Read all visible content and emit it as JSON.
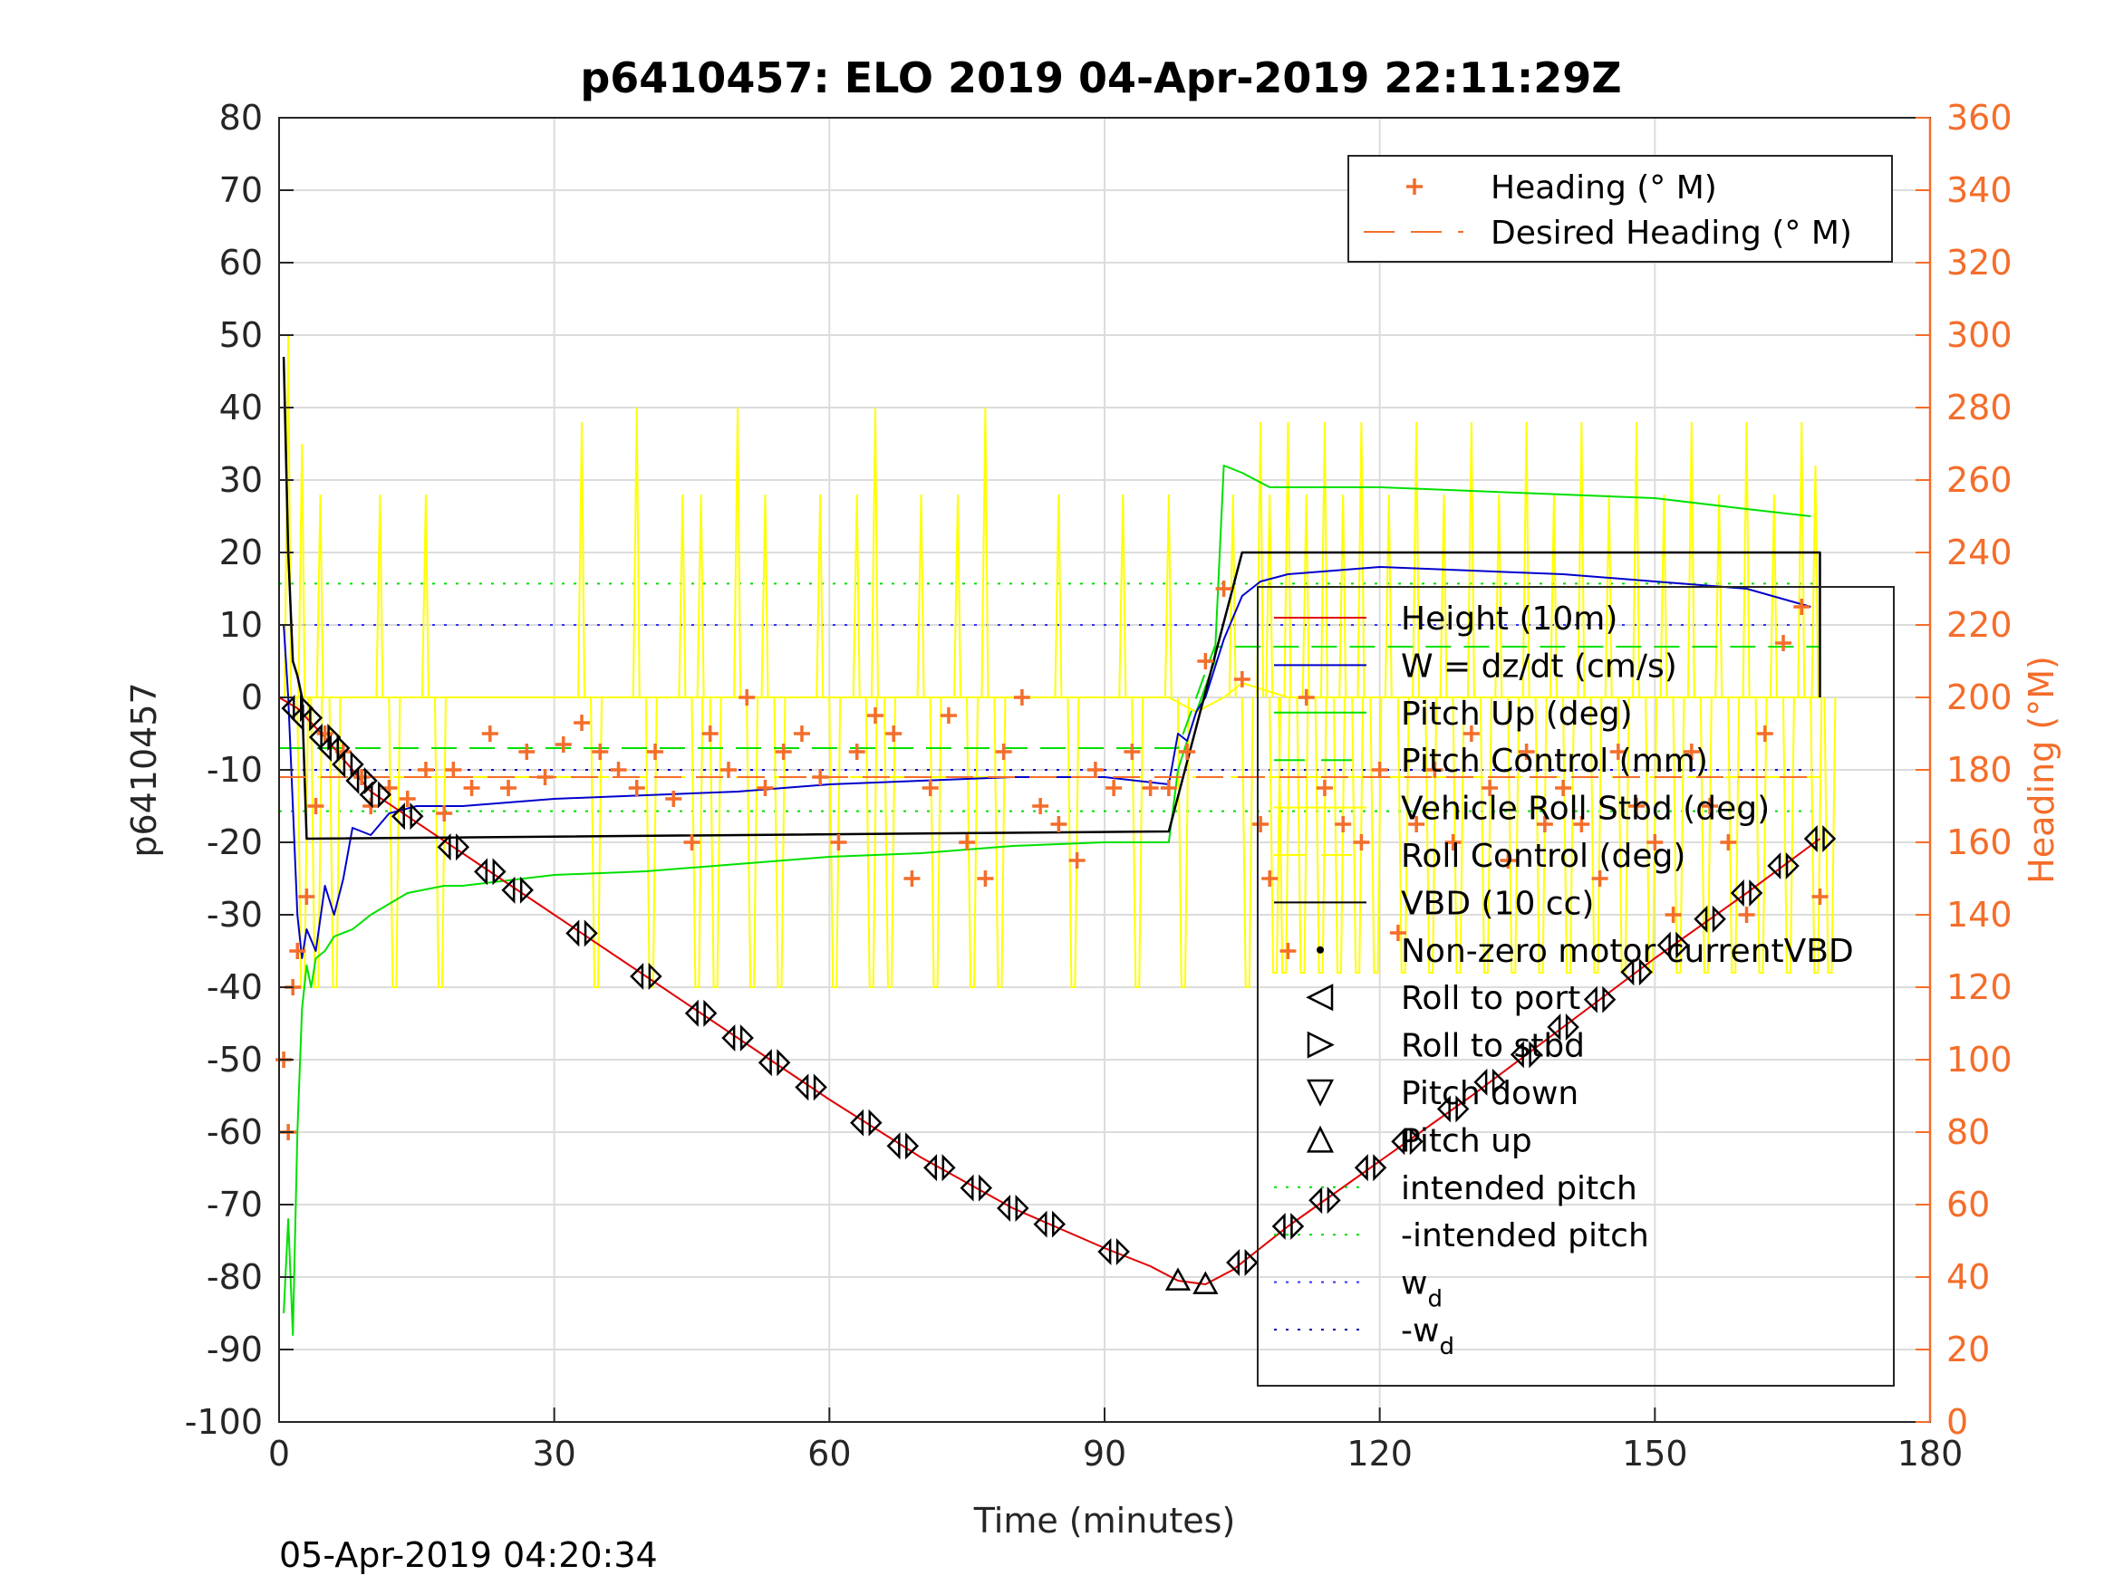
{
  "chart_data": {
    "type": "line",
    "title": "p6410457: ELO 2019 04-Apr-2019 22:11:29Z",
    "xlabel": "Time (minutes)",
    "ylabel_left": "p6410457",
    "ylabel_right": "Heading (°M)",
    "footer": "05-Apr-2019 04:20:34",
    "xlim": [
      0,
      180
    ],
    "xticks": [
      0,
      30,
      60,
      90,
      120,
      150,
      180
    ],
    "ylim_left": [
      -100,
      80
    ],
    "yticks_left": [
      -100,
      -90,
      -80,
      -70,
      -60,
      -50,
      -40,
      -30,
      -20,
      -10,
      0,
      10,
      20,
      30,
      40,
      50,
      60,
      70,
      80
    ],
    "ylim_right": [
      0,
      360
    ],
    "yticks_right": [
      0,
      20,
      40,
      60,
      80,
      100,
      120,
      140,
      160,
      180,
      200,
      220,
      240,
      260,
      280,
      300,
      320,
      340,
      360
    ],
    "grid": true,
    "colors": {
      "orange": "#F46D2A",
      "height": "#E00000",
      "w": "#0000CC",
      "green": "#00E000",
      "yellow": "#FFFF00",
      "black": "#000000",
      "blue_dotted": "#3333FF"
    },
    "legend_right_axis": [
      {
        "label": "Heading (° M)",
        "marker": "plus",
        "color": "#F46D2A"
      },
      {
        "label": "Desired Heading (° M)",
        "line": "dashed",
        "color": "#F46D2A"
      }
    ],
    "legend_left_axis": [
      {
        "label": "Height (10m)",
        "line": "solid",
        "color": "#E00000"
      },
      {
        "label": "W = dz/dt (cm/s)",
        "line": "solid",
        "color": "#0000CC"
      },
      {
        "label": "Pitch Up (deg)",
        "line": "solid",
        "color": "#00E000"
      },
      {
        "label": "Pitch Control (mm)",
        "line": "dashed",
        "color": "#00E000"
      },
      {
        "label": "Vehicle Roll Stbd (deg)",
        "line": "solid",
        "color": "#FFFF00"
      },
      {
        "label": "Roll Control (deg)",
        "line": "dashed",
        "color": "#FFFF00"
      },
      {
        "label": "VBD (10 cc)",
        "line": "solid",
        "color": "#000000"
      },
      {
        "label": "Non-zero motor currentVBD",
        "marker": "dot",
        "color": "#000000"
      },
      {
        "label": "Roll to port",
        "marker": "tri-left",
        "color": "#000000"
      },
      {
        "label": "Roll to stbd",
        "marker": "tri-right",
        "color": "#000000"
      },
      {
        "label": "Pitch down",
        "marker": "tri-down",
        "color": "#000000"
      },
      {
        "label": "Pitch up",
        "marker": "tri-up",
        "color": "#000000"
      },
      {
        "label": "intended pitch",
        "line": "dotted",
        "color": "#00E000"
      },
      {
        "label": "-intended pitch",
        "line": "dotted",
        "color": "#00E000"
      },
      {
        "label": "w",
        "sub": "d",
        "line": "dotted",
        "color": "#3333FF"
      },
      {
        "label": "-w",
        "sub": "d",
        "line": "dotted",
        "color": "#0000AA"
      }
    ],
    "series": [
      {
        "name": "Height (10m)",
        "axis": "left",
        "x": [
          0,
          2,
          5,
          10,
          20,
          30,
          40,
          50,
          60,
          70,
          80,
          90,
          95,
          98,
          101,
          104,
          110,
          120,
          130,
          140,
          150,
          160,
          168
        ],
        "y": [
          0,
          -1.5,
          -5.5,
          -13,
          -21.5,
          -30,
          -38.5,
          -47,
          -55.5,
          -63.5,
          -70.5,
          -76,
          -78.5,
          -80.5,
          -81,
          -79,
          -73,
          -64,
          -55,
          -45.5,
          -36,
          -27,
          -19.5
        ]
      },
      {
        "name": "W = dz/dt (cm/s)",
        "axis": "left",
        "x": [
          0.5,
          1,
          1.5,
          2,
          2.5,
          3,
          4,
          5,
          6,
          7,
          8,
          10,
          12,
          15,
          20,
          25,
          30,
          40,
          50,
          60,
          70,
          80,
          90,
          97,
          98,
          99,
          100,
          101,
          103,
          105,
          107,
          110,
          120,
          130,
          140,
          150,
          160,
          167
        ],
        "y": [
          10,
          0,
          -15,
          -30,
          -36,
          -32,
          -35,
          -26,
          -30,
          -25,
          -18,
          -19,
          -16,
          -15,
          -15,
          -14.5,
          -14,
          -13.5,
          -13,
          -12,
          -11.5,
          -11,
          -11,
          -12,
          -5,
          -6,
          -2,
          0,
          8,
          14,
          16,
          17,
          18,
          17.5,
          17,
          16,
          15,
          12.5
        ]
      },
      {
        "name": "Pitch Up (deg)",
        "axis": "left",
        "x": [
          0.5,
          1,
          1.5,
          2,
          2.5,
          3,
          3.5,
          4,
          5,
          6,
          8,
          10,
          14,
          18,
          20,
          30,
          40,
          50,
          60,
          70,
          80,
          90,
          97,
          98,
          100,
          102,
          103,
          105,
          108,
          112,
          120,
          130,
          140,
          150,
          160,
          167
        ],
        "y": [
          -85,
          -72,
          -88,
          -60,
          -43,
          -37,
          -40,
          -36,
          -35,
          -33,
          -32,
          -30,
          -27,
          -26,
          -26,
          -24.5,
          -24,
          -23,
          -22,
          -21.5,
          -20.5,
          -20,
          -20,
          -10,
          -2,
          5,
          32,
          31,
          29,
          29,
          29,
          28.5,
          28,
          27.5,
          26,
          25
        ]
      },
      {
        "name": "Pitch Control (mm)",
        "axis": "left",
        "x": [
          0,
          5,
          10,
          20,
          40,
          60,
          80,
          97,
          98,
          102,
          110,
          130,
          150,
          168
        ],
        "y": [
          -7,
          -7,
          -7,
          -7,
          -7,
          -7,
          -7,
          -7,
          -7,
          7,
          7,
          7,
          7,
          7
        ]
      },
      {
        "name": "Vehicle Roll Stbd (deg)",
        "axis": "left",
        "x": [
          0,
          5,
          10,
          20,
          30,
          40,
          50,
          60,
          70,
          80,
          90,
          97,
          100,
          103,
          105,
          110,
          120,
          130,
          140,
          150,
          160,
          168
        ],
        "y": [
          0,
          0,
          0,
          0,
          0,
          0,
          0,
          0,
          0,
          0,
          0,
          0,
          -2,
          0,
          2,
          0,
          0,
          0,
          0,
          0,
          0,
          0
        ]
      },
      {
        "name": "Roll Control (deg)",
        "axis": "left",
        "x": [
          0,
          168
        ],
        "y": [
          -11,
          -11
        ]
      },
      {
        "name": "VBD (10 cc)",
        "axis": "left",
        "x": [
          0.5,
          1,
          1.5,
          2,
          2.5,
          3,
          97,
          105,
          168,
          168
        ],
        "y": [
          47,
          20,
          5,
          3,
          0,
          -19.5,
          -18.5,
          20,
          20,
          0
        ]
      },
      {
        "name": "Heading (° M)",
        "axis": "right",
        "x": [
          0.5,
          1,
          1.5,
          2,
          3,
          4,
          5,
          7,
          9,
          10,
          12,
          14,
          16,
          18,
          19,
          21,
          23,
          25,
          27,
          29,
          31,
          33,
          35,
          37,
          39,
          41,
          43,
          45,
          47,
          49,
          51,
          53,
          55,
          57,
          59,
          61,
          63,
          65,
          67,
          69,
          71,
          73,
          75,
          77,
          79,
          81,
          83,
          85,
          87,
          89,
          91,
          93,
          95,
          97,
          99,
          101,
          103,
          105,
          107,
          108,
          110,
          112,
          114,
          116,
          118,
          120,
          122,
          124,
          126,
          128,
          130,
          132,
          134,
          136,
          138,
          140,
          142,
          144,
          146,
          148,
          150,
          152,
          154,
          156,
          158,
          160,
          162,
          164,
          166,
          168
        ],
        "y": [
          100,
          80,
          120,
          130,
          145,
          170,
          190,
          185,
          178,
          170,
          175,
          172,
          180,
          168,
          180,
          175,
          190,
          175,
          185,
          178,
          187,
          193,
          185,
          180,
          175,
          185,
          172,
          160,
          190,
          180,
          200,
          175,
          185,
          190,
          178,
          160,
          185,
          195,
          190,
          150,
          175,
          195,
          160,
          150,
          185,
          200,
          170,
          165,
          155,
          180,
          175,
          185,
          175,
          175,
          185,
          210,
          230,
          205,
          165,
          150,
          130,
          200,
          175,
          165,
          160,
          180,
          135,
          165,
          180,
          160,
          190,
          175,
          155,
          185,
          165,
          175,
          165,
          150,
          185,
          170,
          160,
          140,
          185,
          170,
          160,
          140,
          190,
          215,
          225,
          145
        ]
      },
      {
        "name": "Desired Heading (° M)",
        "axis": "right",
        "x": [
          0,
          168
        ],
        "y": [
          178,
          178
        ]
      },
      {
        "name": "intended pitch",
        "axis": "left",
        "x": [
          0,
          168
        ],
        "y": [
          15.7,
          15.7
        ]
      },
      {
        "name": "-intended pitch",
        "axis": "left",
        "x": [
          0,
          168
        ],
        "y": [
          -15.7,
          -15.7
        ]
      },
      {
        "name": "w_d",
        "axis": "left",
        "x": [
          0,
          168
        ],
        "y": [
          10,
          10
        ]
      },
      {
        "name": "-w_d",
        "axis": "left",
        "x": [
          0,
          168
        ],
        "y": [
          -10,
          -10
        ]
      }
    ],
    "roll_spikes": {
      "x": [
        1,
        2.5,
        4.5,
        11,
        16,
        33,
        39,
        44,
        46,
        50,
        53,
        59,
        63,
        65,
        70,
        74,
        77,
        85,
        92,
        97,
        104,
        107,
        108,
        110,
        112,
        114,
        116,
        118,
        121,
        124,
        127,
        130,
        133,
        136,
        139,
        142,
        145,
        148,
        151,
        154,
        157,
        160,
        163,
        166,
        167.5
      ],
      "up": [
        50,
        35,
        28,
        28,
        28,
        38,
        40,
        28,
        28,
        40,
        28,
        28,
        28,
        40,
        28,
        28,
        40,
        28,
        28,
        28,
        28,
        38,
        28,
        38,
        28,
        38,
        28,
        38,
        28,
        38,
        28,
        38,
        28,
        38,
        28,
        38,
        28,
        38,
        28,
        38,
        28,
        38,
        28,
        38,
        32
      ],
      "down": [
        -40,
        -40,
        -40,
        -40,
        -40,
        -40,
        -40,
        -40,
        -40,
        -40,
        -40,
        -40,
        -40,
        -40,
        -40,
        -40,
        -40,
        -40,
        -40,
        -40,
        -40,
        -38,
        -38,
        -38,
        -38,
        -38,
        -38,
        -38,
        -38,
        -38,
        -38,
        -38,
        -38,
        -38,
        -38,
        -38,
        -38,
        -38,
        -38,
        -38,
        -38,
        -38,
        -38,
        -38,
        -38
      ]
    },
    "roll_markers_x": [
      2,
      3,
      5,
      6,
      7.5,
      9,
      10.5,
      14,
      19,
      23,
      26,
      33,
      40,
      46,
      50,
      54,
      58,
      64,
      68,
      72,
      76,
      80,
      84,
      91,
      98,
      101,
      105,
      110,
      114,
      119,
      123,
      128,
      132,
      136,
      140,
      144,
      148,
      152,
      156,
      160,
      164,
      168
    ]
  }
}
